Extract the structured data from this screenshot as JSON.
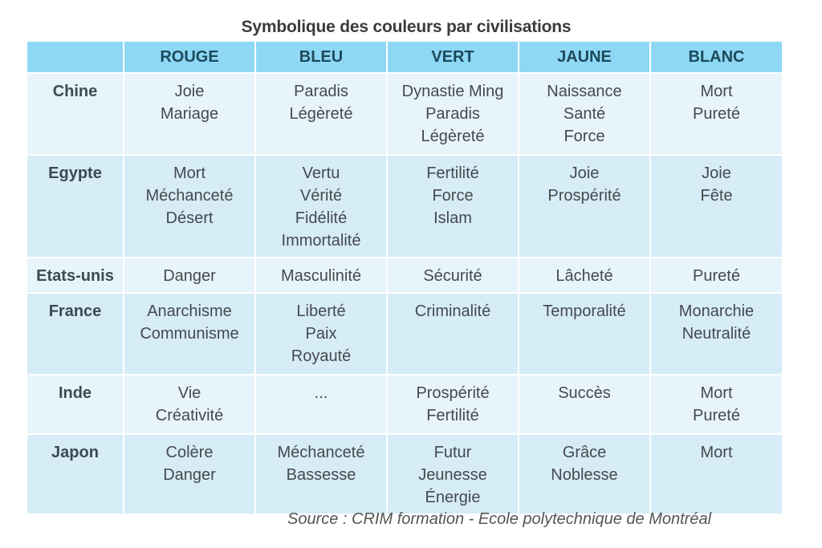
{
  "title": "Symbolique des couleurs par civilisations",
  "table": {
    "columns": [
      "",
      "ROUGE",
      "BLEU",
      "VERT",
      "JAUNE",
      "BLANC"
    ],
    "rows": [
      {
        "civilisation": "Chine",
        "cells": [
          [
            "Joie",
            "Mariage"
          ],
          [
            "Paradis",
            "Légèreté"
          ],
          [
            "Dynastie Ming",
            "Paradis",
            "Légèreté"
          ],
          [
            "Naissance",
            "Santé",
            "Force"
          ],
          [
            "Mort",
            "Pureté"
          ]
        ]
      },
      {
        "civilisation": "Egypte",
        "cells": [
          [
            "Mort",
            "Méchanceté",
            "Désert"
          ],
          [
            "Vertu",
            "Vérité",
            "Fidélité",
            "Immortalité"
          ],
          [
            "Fertilité",
            "Force",
            "Islam"
          ],
          [
            "Joie",
            "Prospérité"
          ],
          [
            "Joie",
            "Fête"
          ]
        ]
      },
      {
        "civilisation": "Etats-unis",
        "cells": [
          [
            "Danger"
          ],
          [
            "Masculinité"
          ],
          [
            "Sécurité"
          ],
          [
            "Lâcheté"
          ],
          [
            "Pureté"
          ]
        ]
      },
      {
        "civilisation": "France",
        "cells": [
          [
            "Anarchisme",
            "Communisme"
          ],
          [
            "Liberté",
            "Paix",
            "Royauté"
          ],
          [
            "Criminalité"
          ],
          [
            "Temporalité"
          ],
          [
            "Monarchie",
            "Neutralité"
          ]
        ]
      },
      {
        "civilisation": "Inde",
        "cells": [
          [
            "Vie",
            "Créativité"
          ],
          [
            "..."
          ],
          [
            "Prospérité",
            "Fertilité"
          ],
          [
            "Succès"
          ],
          [
            "Mort",
            "Pureté"
          ]
        ]
      },
      {
        "civilisation": "Japon",
        "cells": [
          [
            "Colère",
            "Danger"
          ],
          [
            "Méchanceté",
            "Bassesse"
          ],
          [
            "Futur",
            "Jeunesse",
            "Énergie"
          ],
          [
            "Grâce",
            "Noblesse"
          ],
          [
            "Mort"
          ]
        ]
      }
    ]
  },
  "source": "Source : CRIM formation - Ecole polytechnique de Montréal",
  "colors": {
    "header": "#8ed8f5",
    "row_light": "#e8f4fb",
    "row_dark": "#d6ecf6"
  }
}
